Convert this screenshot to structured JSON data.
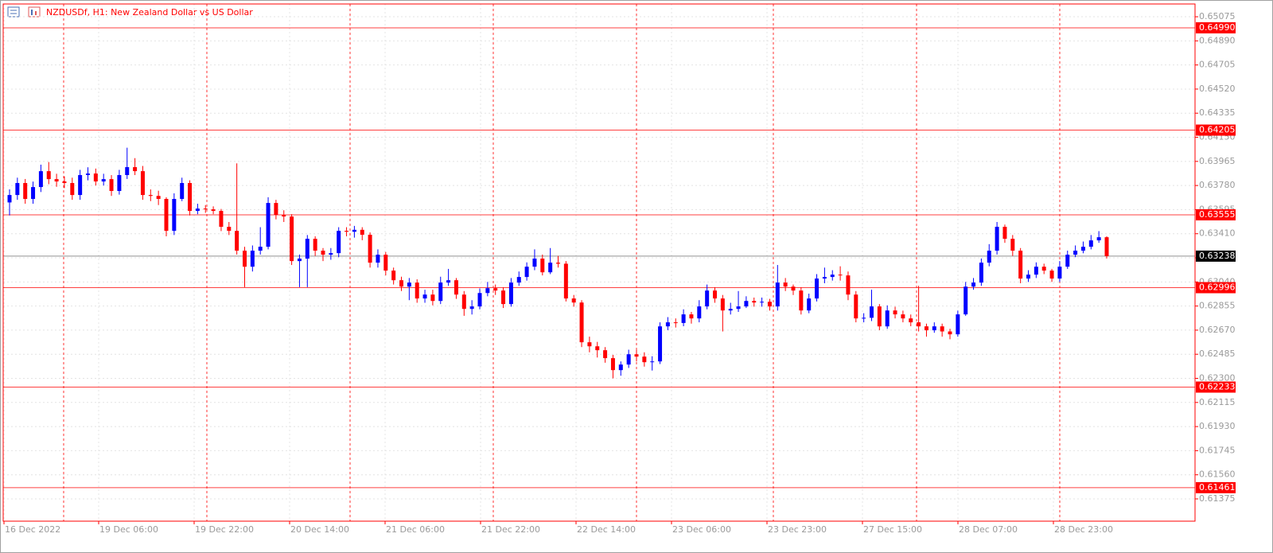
{
  "chart_data": {
    "type": "candlestick",
    "title": "NZDUSDf, H1:  New Zealand Dollar vs US Dollar",
    "ylim": [
      0.61204,
      0.65173
    ],
    "yticks": [
      {
        "value": 0.65075,
        "label": "0.65075"
      },
      {
        "value": 0.6489,
        "label": "0.64890"
      },
      {
        "value": 0.64705,
        "label": "0.64705"
      },
      {
        "value": 0.6452,
        "label": "0.64520"
      },
      {
        "value": 0.64335,
        "label": "0.64335"
      },
      {
        "value": 0.6415,
        "label": "0.64150"
      },
      {
        "value": 0.63965,
        "label": "0.63965"
      },
      {
        "value": 0.6378,
        "label": "0.63780"
      },
      {
        "value": 0.63595,
        "label": "0.63595"
      },
      {
        "value": 0.6341,
        "label": "0.63410"
      },
      {
        "value": 0.63225,
        "label": "0.63225"
      },
      {
        "value": 0.6304,
        "label": "0.63040"
      },
      {
        "value": 0.62855,
        "label": "0.62855"
      },
      {
        "value": 0.6267,
        "label": "0.62670"
      },
      {
        "value": 0.62485,
        "label": "0.62485"
      },
      {
        "value": 0.623,
        "label": "0.62300"
      },
      {
        "value": 0.62115,
        "label": "0.62115"
      },
      {
        "value": 0.6193,
        "label": "0.61930"
      },
      {
        "value": 0.61745,
        "label": "0.61745"
      },
      {
        "value": 0.6156,
        "label": "0.61560"
      },
      {
        "value": 0.61375,
        "label": "0.61375"
      }
    ],
    "levels": [
      {
        "value": 0.6499,
        "label": "0.64990"
      },
      {
        "value": 0.64205,
        "label": "0.64205"
      },
      {
        "value": 0.63555,
        "label": "0.63555"
      },
      {
        "value": 0.62996,
        "label": "0.62996"
      },
      {
        "value": 0.62233,
        "label": "0.62233"
      },
      {
        "value": 0.61461,
        "label": "0.61461"
      }
    ],
    "current_price": {
      "value": 0.63238,
      "label": "0.63238"
    },
    "level_color": "#ff0000",
    "up_color": "#0000ff",
    "down_color": "#ff0000",
    "grid": true,
    "xlabels": [
      "16 Dec 2022",
      "19 Dec 06:00",
      "19 Dec 22:00",
      "20 Dec 14:00",
      "21 Dec 06:00",
      "21 Dec 22:00",
      "22 Dec 14:00",
      "23 Dec 06:00",
      "23 Dec 23:00",
      "27 Dec 15:00",
      "28 Dec 07:00",
      "28 Dec 23:00"
    ],
    "open": [
      0.6365,
      0.63707,
      0.63799,
      0.63677,
      0.63768,
      0.6389,
      0.63829,
      0.63811,
      0.63799,
      0.63707,
      0.6386,
      0.63872,
      0.63811,
      0.63829,
      0.63738,
      0.6386,
      0.63921,
      0.6389,
      0.63707,
      0.637,
      0.63677,
      0.63432,
      0.63677,
      0.63799,
      0.63585,
      0.63603,
      0.63597,
      0.63585,
      0.63463,
      0.63432,
      0.6328,
      0.63157,
      0.6328,
      0.6331,
      0.63646,
      0.63554,
      0.63542,
      0.632,
      0.63219,
      0.63371,
      0.6328,
      0.63249,
      0.63261,
      0.63432,
      0.63425,
      0.6344,
      0.63402,
      0.63188,
      0.63249,
      0.63127,
      0.63053,
      0.63004,
      0.63035,
      0.62913,
      0.62943,
      0.62894,
      0.63035,
      0.63053,
      0.62943,
      0.62833,
      0.62852,
      0.62955,
      0.62992,
      0.62974,
      0.6287,
      0.63035,
      0.63078,
      0.63157,
      0.63219,
      0.63114,
      0.63188,
      0.6318,
      0.62913,
      0.62882,
      0.62577,
      0.62546,
      0.62516,
      0.62455,
      0.62363,
      0.62406,
      0.62485,
      0.62467,
      0.62424,
      0.6243,
      0.62699,
      0.6273,
      0.62725,
      0.62791,
      0.6276,
      0.62852,
      0.62974,
      0.62913,
      0.62821,
      0.62833,
      0.62852,
      0.62894,
      0.62882,
      0.62888,
      0.62852,
      0.63035,
      0.63004,
      0.62974,
      0.62821,
      0.62913,
      0.63066,
      0.63078,
      0.63096,
      0.6309,
      0.62943,
      0.6276,
      0.62765,
      0.62852,
      0.62699,
      0.62821,
      0.62791,
      0.6276,
      0.6273,
      0.62699,
      0.62669,
      0.62699,
      0.6266,
      0.62638,
      0.62791,
      0.63004,
      0.63035,
      0.63188,
      0.6328,
      0.63463,
      0.63371,
      0.6328,
      0.63066,
      0.63096,
      0.63157,
      0.63127,
      0.63066,
      0.63157,
      0.63249,
      0.6328,
      0.6331,
      0.63359,
      0.63383
    ],
    "high": [
      0.6375,
      0.6384,
      0.6383,
      0.6381,
      0.6394,
      0.6396,
      0.6387,
      0.6385,
      0.6384,
      0.639,
      0.6392,
      0.6391,
      0.6387,
      0.6386,
      0.639,
      0.6407,
      0.6399,
      0.6393,
      0.6375,
      0.6374,
      0.6369,
      0.6372,
      0.6384,
      0.6382,
      0.6364,
      0.6363,
      0.6362,
      0.636,
      0.635,
      0.6395,
      0.6331,
      0.6332,
      0.6346,
      0.6369,
      0.6367,
      0.6359,
      0.6356,
      0.6325,
      0.634,
      0.6339,
      0.633,
      0.633,
      0.6346,
      0.6346,
      0.6347,
      0.6346,
      0.6342,
      0.6329,
      0.6327,
      0.6315,
      0.6308,
      0.6307,
      0.6306,
      0.6298,
      0.6298,
      0.6308,
      0.6314,
      0.6307,
      0.6297,
      0.629,
      0.6299,
      0.6304,
      0.6302,
      0.63,
      0.6307,
      0.6312,
      0.6319,
      0.6329,
      0.6325,
      0.633,
      0.6324,
      0.632,
      0.6294,
      0.629,
      0.6262,
      0.6258,
      0.6254,
      0.6248,
      0.6243,
      0.6252,
      0.6252,
      0.625,
      0.6247,
      0.6273,
      0.6277,
      0.6276,
      0.6283,
      0.6281,
      0.629,
      0.6302,
      0.63,
      0.6294,
      0.6288,
      0.6297,
      0.6293,
      0.6292,
      0.6292,
      0.6291,
      0.6317,
      0.6307,
      0.6302,
      0.63,
      0.6295,
      0.631,
      0.6315,
      0.6313,
      0.6316,
      0.6312,
      0.6297,
      0.628,
      0.6298,
      0.6287,
      0.6286,
      0.6285,
      0.6282,
      0.6279,
      0.6301,
      0.6272,
      0.6273,
      0.6272,
      0.6268,
      0.6282,
      0.6304,
      0.6307,
      0.6322,
      0.6333,
      0.635,
      0.6348,
      0.634,
      0.633,
      0.6313,
      0.6319,
      0.6318,
      0.6314,
      0.632,
      0.6328,
      0.6332,
      0.6335,
      0.634,
      0.6343,
      0.6339
    ],
    "low": [
      0.6355,
      0.6367,
      0.6364,
      0.6364,
      0.6373,
      0.6379,
      0.6377,
      0.6376,
      0.6367,
      0.6367,
      0.6382,
      0.6378,
      0.6378,
      0.637,
      0.6371,
      0.6383,
      0.6386,
      0.6367,
      0.6366,
      0.6363,
      0.6339,
      0.634,
      0.6366,
      0.6355,
      0.6356,
      0.6357,
      0.6356,
      0.6343,
      0.634,
      0.6325,
      0.63,
      0.6312,
      0.6325,
      0.6329,
      0.6352,
      0.635,
      0.6317,
      0.63,
      0.63,
      0.6324,
      0.632,
      0.6321,
      0.6323,
      0.6339,
      0.6338,
      0.6336,
      0.6315,
      0.6315,
      0.6309,
      0.6302,
      0.6297,
      0.629,
      0.6288,
      0.6288,
      0.6286,
      0.6287,
      0.6301,
      0.6291,
      0.6278,
      0.6279,
      0.6283,
      0.6293,
      0.6294,
      0.6284,
      0.6285,
      0.6301,
      0.6305,
      0.6313,
      0.6309,
      0.631,
      0.6315,
      0.6289,
      0.6285,
      0.6254,
      0.625,
      0.6246,
      0.6242,
      0.623,
      0.6232,
      0.6238,
      0.6243,
      0.6239,
      0.6236,
      0.6241,
      0.6267,
      0.6269,
      0.627,
      0.6272,
      0.6273,
      0.6283,
      0.6288,
      0.6266,
      0.6279,
      0.6281,
      0.6284,
      0.6285,
      0.6285,
      0.6282,
      0.6282,
      0.6297,
      0.6294,
      0.6279,
      0.628,
      0.6289,
      0.6303,
      0.6305,
      0.6305,
      0.629,
      0.6273,
      0.6273,
      0.6274,
      0.6267,
      0.6268,
      0.6276,
      0.6273,
      0.627,
      0.6266,
      0.6262,
      0.6265,
      0.6262,
      0.626,
      0.6262,
      0.6278,
      0.6298,
      0.6301,
      0.6316,
      0.6325,
      0.6334,
      0.6324,
      0.6303,
      0.6304,
      0.6307,
      0.631,
      0.6304,
      0.6304,
      0.6314,
      0.6323,
      0.6326,
      0.6329,
      0.6334,
      0.6322
    ],
    "close": [
      0.63707,
      0.63799,
      0.63677,
      0.63768,
      0.6389,
      0.63829,
      0.63811,
      0.63799,
      0.63707,
      0.6386,
      0.63872,
      0.63811,
      0.63829,
      0.63738,
      0.6386,
      0.63921,
      0.6389,
      0.63707,
      0.637,
      0.63677,
      0.63432,
      0.63677,
      0.63799,
      0.63585,
      0.63603,
      0.63597,
      0.63585,
      0.63463,
      0.63432,
      0.6328,
      0.63157,
      0.6328,
      0.6331,
      0.63646,
      0.63554,
      0.63542,
      0.632,
      0.63219,
      0.63371,
      0.6328,
      0.63249,
      0.63261,
      0.63432,
      0.63425,
      0.6344,
      0.63402,
      0.63188,
      0.63249,
      0.63127,
      0.63053,
      0.63004,
      0.63035,
      0.62913,
      0.62943,
      0.62894,
      0.63035,
      0.63053,
      0.62943,
      0.62833,
      0.62852,
      0.62955,
      0.62992,
      0.62974,
      0.6287,
      0.63035,
      0.63078,
      0.63157,
      0.63219,
      0.63114,
      0.63188,
      0.6318,
      0.62913,
      0.62882,
      0.62577,
      0.62546,
      0.62516,
      0.62455,
      0.62363,
      0.62406,
      0.62485,
      0.62467,
      0.62424,
      0.6243,
      0.62699,
      0.6273,
      0.62725,
      0.62791,
      0.6276,
      0.62852,
      0.62974,
      0.62913,
      0.62821,
      0.62833,
      0.62852,
      0.62894,
      0.62882,
      0.62888,
      0.62852,
      0.63035,
      0.63004,
      0.62974,
      0.62821,
      0.62913,
      0.63066,
      0.63078,
      0.63096,
      0.6309,
      0.62943,
      0.6276,
      0.62765,
      0.62852,
      0.62699,
      0.62821,
      0.62791,
      0.6276,
      0.6273,
      0.62699,
      0.62669,
      0.62699,
      0.6266,
      0.62638,
      0.62791,
      0.63004,
      0.63035,
      0.63188,
      0.6328,
      0.63463,
      0.63371,
      0.6328,
      0.63066,
      0.63096,
      0.63157,
      0.63127,
      0.63066,
      0.63157,
      0.63249,
      0.6328,
      0.6331,
      0.63359,
      0.63383,
      0.63238
    ]
  }
}
